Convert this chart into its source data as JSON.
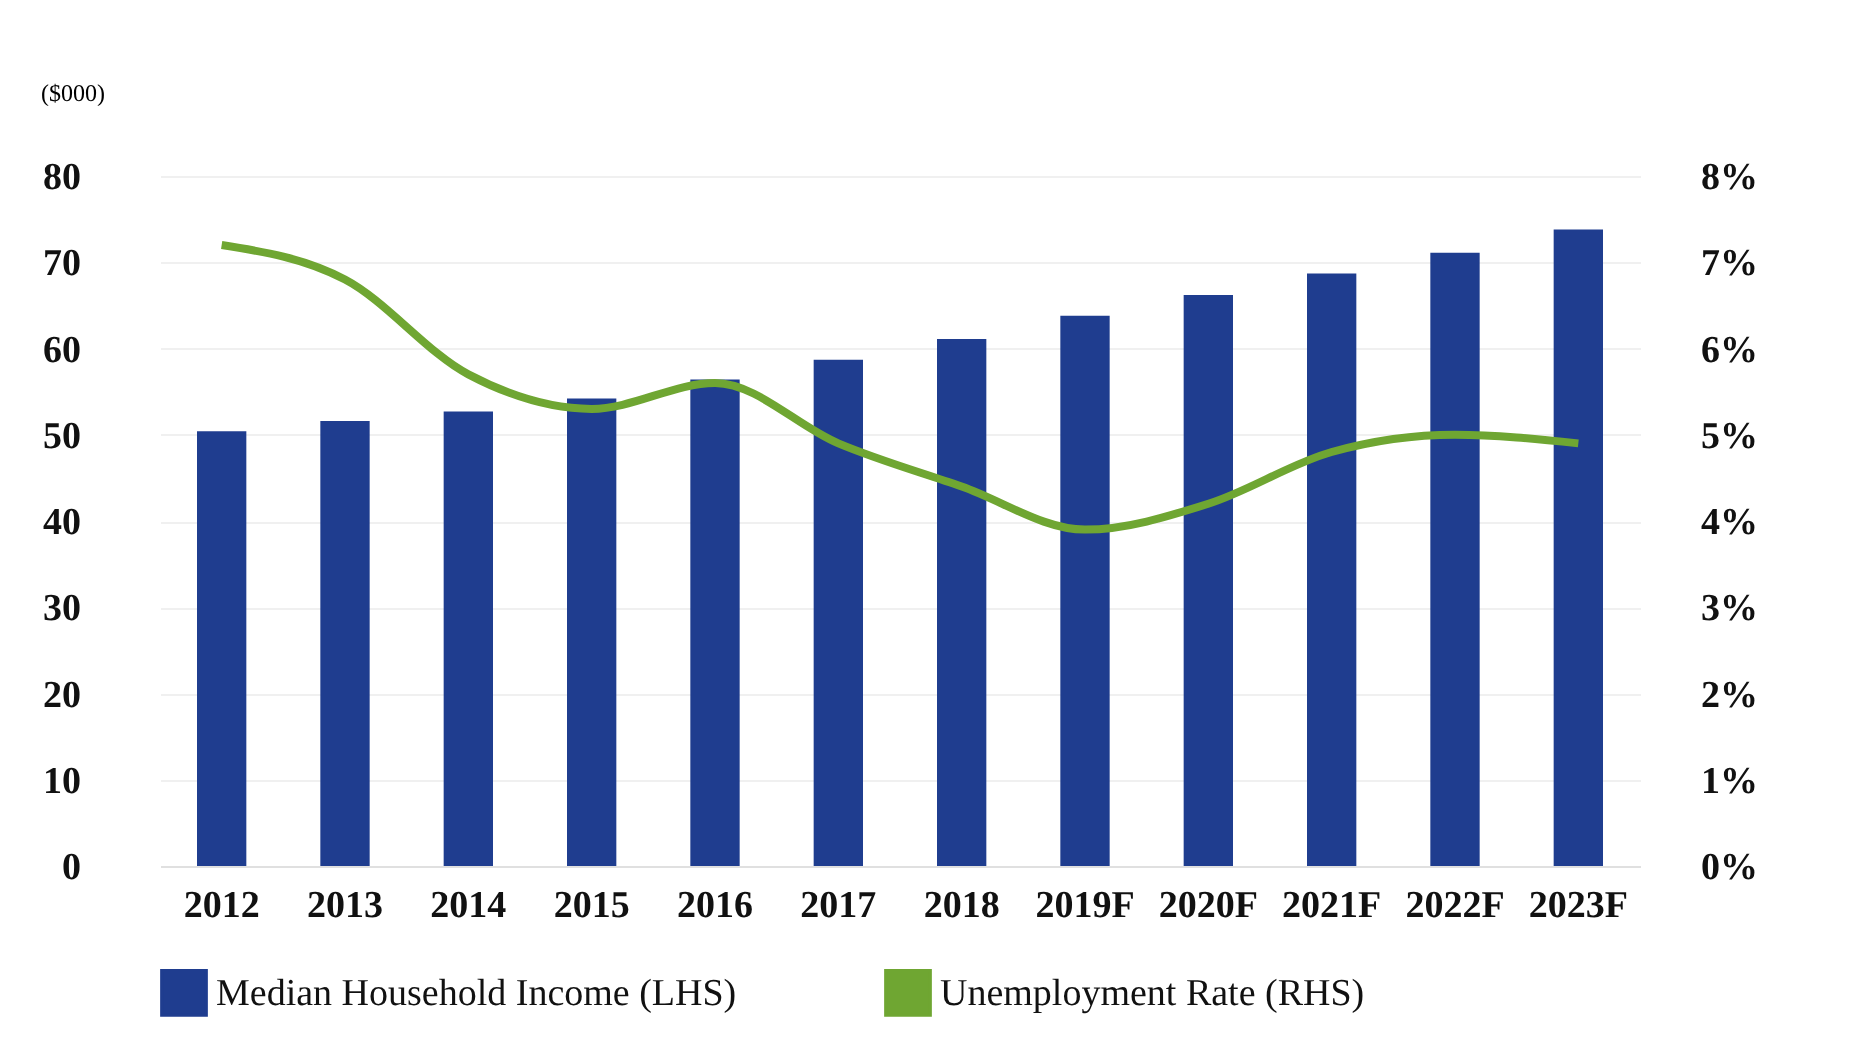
{
  "chart_data": {
    "type": "bar",
    "ylabel": "($000)",
    "categories": [
      "2012",
      "2013",
      "2014",
      "2015",
      "2016",
      "2017",
      "2018",
      "2019F",
      "2020F",
      "2021F",
      "2022F",
      "2023F"
    ],
    "series": [
      {
        "name": "Median Household Income (LHS)",
        "color": "#1f3d8f",
        "values": [
          50.4,
          51.6,
          52.7,
          54.2,
          56.4,
          58.7,
          61.1,
          63.8,
          66.2,
          68.7,
          71.1,
          73.8
        ]
      },
      {
        "name": "Unemployment Rate (RHS)",
        "type": "line",
        "axis": "y2",
        "color": "#6fa632",
        "values": [
          7.2,
          6.8,
          5.7,
          5.3,
          5.6,
          4.9,
          4.4,
          3.9,
          4.2,
          4.8,
          5.0,
          4.9
        ]
      }
    ],
    "ylim": [
      0,
      80
    ],
    "yticks": [
      0,
      10,
      20,
      30,
      40,
      50,
      60,
      70,
      80
    ],
    "y2lim": [
      0,
      8
    ],
    "y2ticks": [
      {
        "value": 0,
        "label": "0%"
      },
      {
        "value": 1,
        "label": "1%"
      },
      {
        "value": 2,
        "label": "2%"
      },
      {
        "value": 3,
        "label": "3%"
      },
      {
        "value": 4,
        "label": "4%"
      },
      {
        "value": 5,
        "label": "5%"
      },
      {
        "value": 6,
        "label": "6%"
      },
      {
        "value": 7,
        "label": "7%"
      },
      {
        "value": 8,
        "label": "8%"
      }
    ],
    "grid": "y",
    "legend": "bottom"
  }
}
